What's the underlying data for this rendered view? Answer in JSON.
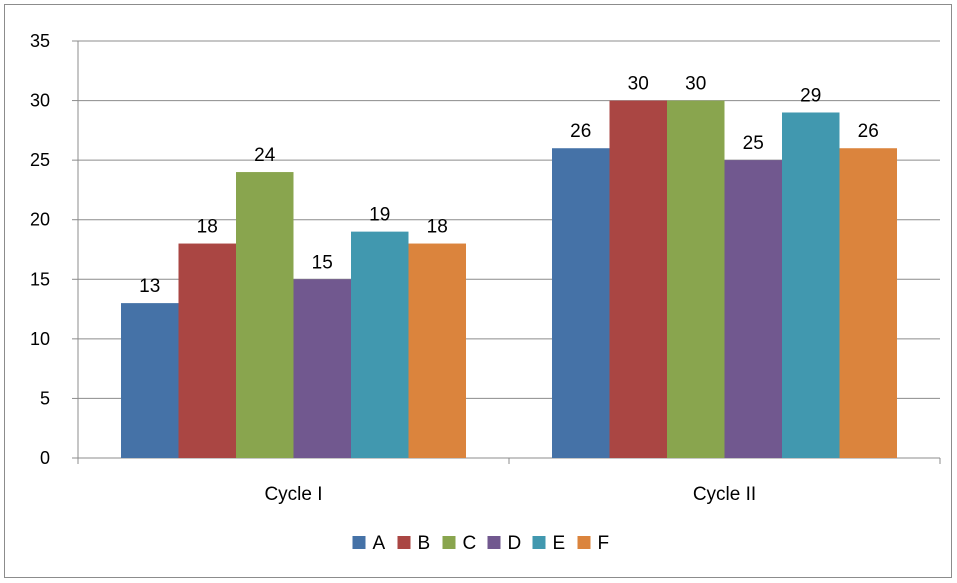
{
  "chart_data": {
    "type": "bar",
    "categories": [
      "Cycle I",
      "Cycle II"
    ],
    "series": [
      {
        "name": "A",
        "values": [
          13,
          26
        ],
        "color": "#4572a7"
      },
      {
        "name": "B",
        "values": [
          18,
          30
        ],
        "color": "#aa4643"
      },
      {
        "name": "C",
        "values": [
          24,
          30
        ],
        "color": "#89a54e"
      },
      {
        "name": "D",
        "values": [
          15,
          25
        ],
        "color": "#71588f"
      },
      {
        "name": "E",
        "values": [
          19,
          29
        ],
        "color": "#4198af"
      },
      {
        "name": "F",
        "values": [
          18,
          26
        ],
        "color": "#db843d"
      }
    ],
    "ylim": [
      0,
      35
    ],
    "yticks": [
      0,
      5,
      10,
      15,
      20,
      25,
      30,
      35
    ],
    "grid": true,
    "legend_position": "bottom",
    "data_labels": true
  }
}
